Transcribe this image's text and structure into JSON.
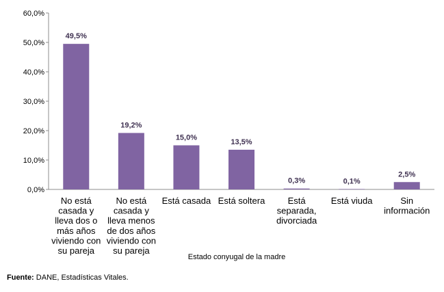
{
  "chart_data": {
    "type": "bar",
    "categories": [
      [
        "No está",
        "casada y",
        "lleva dos o",
        "más años",
        "viviendo con",
        "su pareja"
      ],
      [
        "No está",
        "casada y",
        "lleva menos",
        "de dos años",
        "viviendo con",
        "su pareja"
      ],
      [
        "Está casada"
      ],
      [
        "Está soltera"
      ],
      [
        "Está",
        "separada,",
        "divorciada"
      ],
      [
        "Está viuda"
      ],
      [
        "Sin",
        "información"
      ]
    ],
    "values": [
      49.5,
      19.2,
      15.0,
      13.5,
      0.3,
      0.1,
      2.5
    ],
    "data_labels": [
      "49,5%",
      "19,2%",
      "15,0%",
      "13,5%",
      "0,3%",
      "0,1%",
      "2,5%"
    ],
    "y_ticks": [
      0,
      10,
      20,
      30,
      40,
      50,
      60
    ],
    "y_tick_labels": [
      "0,0%",
      "10,0%",
      "20,0%",
      "30,0%",
      "40,0%",
      "50,0%",
      "60,0%"
    ],
    "ylim": [
      0,
      60
    ],
    "title": "",
    "xlabel": "Estado conyugal de la madre",
    "ylabel": "",
    "grid": false,
    "legend": "none",
    "bar_color": "#8064a2",
    "label_color": "#3f3151"
  },
  "source": {
    "label": "Fuente:",
    "text": " DANE, Estadísticas Vitales."
  }
}
